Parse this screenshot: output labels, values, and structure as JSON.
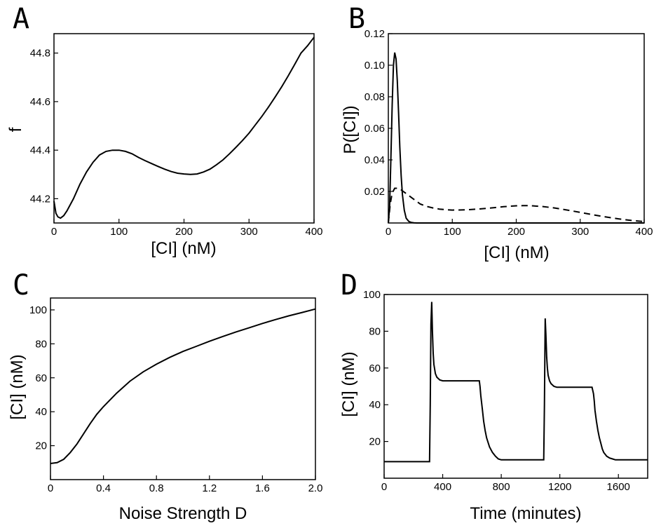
{
  "chart_data": [
    {
      "panel": "A",
      "type": "line",
      "xlabel": "[CI] (nM)",
      "ylabel": "f",
      "xlim": [
        0,
        400
      ],
      "ylim": [
        44.1,
        44.88
      ],
      "xticks": [
        "0",
        "100",
        "200",
        "300",
        "400"
      ],
      "yticks": [
        "44.2",
        "44.4",
        "44.6",
        "44.8"
      ],
      "series": [
        {
          "style": "solid",
          "x": [
            0,
            3,
            6,
            10,
            15,
            20,
            30,
            40,
            50,
            60,
            70,
            80,
            90,
            100,
            110,
            120,
            130,
            140,
            150,
            160,
            170,
            180,
            190,
            200,
            210,
            220,
            230,
            240,
            250,
            260,
            270,
            280,
            290,
            300,
            310,
            320,
            330,
            340,
            350,
            360,
            370,
            380,
            390,
            400
          ],
          "y": [
            44.19,
            44.14,
            44.125,
            44.12,
            44.13,
            44.15,
            44.2,
            44.26,
            44.31,
            44.35,
            44.38,
            44.395,
            44.4,
            44.4,
            44.395,
            44.385,
            44.37,
            44.357,
            44.345,
            44.333,
            44.322,
            44.312,
            44.305,
            44.302,
            44.3,
            44.302,
            44.31,
            44.322,
            44.34,
            44.36,
            44.385,
            44.412,
            44.44,
            44.47,
            44.505,
            44.54,
            44.578,
            44.618,
            44.66,
            44.705,
            44.752,
            44.8,
            44.83,
            44.865
          ]
        }
      ]
    },
    {
      "panel": "B",
      "type": "line",
      "xlabel": "[CI] (nM)",
      "ylabel": "P([CI])",
      "xlim": [
        0,
        400
      ],
      "ylim": [
        0,
        0.12
      ],
      "xticks": [
        "0",
        "100",
        "200",
        "300",
        "400"
      ],
      "yticks": [
        "0.02",
        "0.04",
        "0.06",
        "0.08",
        "0.10",
        "0.12"
      ],
      "series": [
        {
          "style": "solid",
          "x": [
            0,
            2,
            4,
            6,
            8,
            10,
            12,
            14,
            16,
            18,
            20,
            22,
            25,
            28,
            32,
            36,
            40,
            45,
            50,
            60,
            400
          ],
          "y": [
            0,
            0.01,
            0.04,
            0.075,
            0.1,
            0.108,
            0.104,
            0.09,
            0.07,
            0.048,
            0.03,
            0.018,
            0.008,
            0.003,
            0.001,
            0.0003,
            0.0001,
            0,
            0,
            0,
            0
          ]
        },
        {
          "style": "dashed",
          "x": [
            0,
            3,
            6,
            10,
            15,
            20,
            30,
            40,
            50,
            60,
            70,
            80,
            90,
            100,
            120,
            140,
            160,
            180,
            200,
            210,
            220,
            240,
            260,
            280,
            300,
            320,
            340,
            360,
            380,
            400
          ],
          "y": [
            0.0,
            0.012,
            0.019,
            0.022,
            0.022,
            0.021,
            0.018,
            0.015,
            0.012,
            0.0105,
            0.0095,
            0.0088,
            0.0084,
            0.0082,
            0.0083,
            0.0088,
            0.0095,
            0.0103,
            0.0109,
            0.011,
            0.011,
            0.0105,
            0.0095,
            0.0082,
            0.0067,
            0.0052,
            0.0038,
            0.0026,
            0.0016,
            0.0009
          ]
        }
      ]
    },
    {
      "panel": "C",
      "type": "line",
      "xlabel": "Noise Strength D",
      "ylabel": "[CI] (nM)",
      "xlim": [
        0,
        2.0
      ],
      "ylim": [
        0,
        107
      ],
      "xticks": [
        "0",
        "0.4",
        "0.8",
        "1.2",
        "1.6",
        "2.0"
      ],
      "yticks": [
        "20",
        "40",
        "60",
        "80",
        "100"
      ],
      "series": [
        {
          "style": "solid",
          "x": [
            0,
            0.05,
            0.1,
            0.15,
            0.2,
            0.25,
            0.3,
            0.35,
            0.4,
            0.5,
            0.6,
            0.7,
            0.8,
            0.9,
            1.0,
            1.1,
            1.2,
            1.3,
            1.4,
            1.5,
            1.6,
            1.7,
            1.8,
            1.9,
            2.0
          ],
          "y": [
            9.5,
            10,
            12,
            16,
            21,
            27,
            33,
            38.5,
            43,
            51,
            58,
            63.5,
            68,
            72,
            75.5,
            78.5,
            81.5,
            84.3,
            87,
            89.5,
            92,
            94.3,
            96.5,
            98.5,
            100.5
          ]
        }
      ]
    },
    {
      "panel": "D",
      "type": "line",
      "xlabel": "Time (minutes)",
      "ylabel": "[CI] (nM)",
      "xlim": [
        0,
        1800
      ],
      "ylim": [
        0,
        100
      ],
      "xticks": [
        "0",
        "400",
        "800",
        "1200",
        "1600"
      ],
      "yticks": [
        "20",
        "40",
        "60",
        "80",
        "100"
      ],
      "series": [
        {
          "style": "solid",
          "x": [
            0,
            310,
            315,
            320,
            325,
            330,
            335,
            340,
            350,
            360,
            380,
            400,
            450,
            500,
            550,
            600,
            640,
            650,
            655,
            660,
            670,
            680,
            690,
            700,
            720,
            740,
            760,
            780,
            800,
            850,
            900,
            950,
            1000,
            1050,
            1090,
            1095,
            1100,
            1105,
            1110,
            1115,
            1120,
            1130,
            1140,
            1160,
            1180,
            1200,
            1250,
            1300,
            1350,
            1400,
            1420,
            1430,
            1435,
            1440,
            1450,
            1460,
            1470,
            1480,
            1490,
            1500,
            1520,
            1540,
            1560,
            1580,
            1600,
            1650,
            1700,
            1750,
            1800
          ],
          "y": [
            9,
            9,
            40,
            84,
            96,
            80,
            68,
            62,
            57,
            55,
            53.5,
            53,
            53,
            53,
            53,
            53,
            53,
            53,
            50,
            45,
            38,
            31,
            26,
            22,
            17,
            14,
            12,
            10.5,
            10,
            10,
            10,
            10,
            10,
            10,
            10,
            40,
            87,
            78,
            66,
            60,
            56,
            53,
            51.5,
            50,
            49.5,
            49.5,
            49.5,
            49.5,
            49.5,
            49.5,
            49.5,
            46,
            42,
            37,
            31,
            26,
            22,
            19,
            16,
            14,
            12,
            11,
            10.5,
            10,
            10,
            10,
            10,
            10,
            10
          ]
        }
      ]
    }
  ]
}
